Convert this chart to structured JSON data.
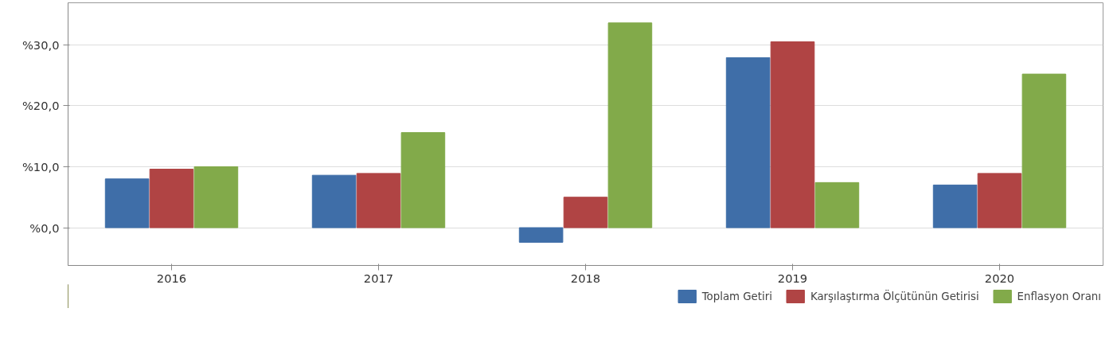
{
  "chart_data": {
    "type": "bar",
    "categories": [
      "2016",
      "2017",
      "2018",
      "2019",
      "2020"
    ],
    "series": [
      {
        "name": "Toplam Getiri",
        "color": "#3f6ea8",
        "values": [
          8.0,
          8.6,
          -2.4,
          27.9,
          7.0
        ]
      },
      {
        "name": "Karşılaştırma Ölçütünün Getirisi",
        "color": "#b04444",
        "values": [
          9.6,
          8.9,
          5.0,
          30.5,
          8.9
        ]
      },
      {
        "name": "Enflasyon Oranı",
        "color": "#82aa4a",
        "values": [
          10.0,
          15.6,
          33.6,
          7.4,
          25.2
        ]
      }
    ],
    "ylim": [
      -6.2,
      36.9
    ],
    "yticks": [
      {
        "value": 0,
        "label": "%0,0"
      },
      {
        "value": 10,
        "label": "%10,0"
      },
      {
        "value": 20,
        "label": "%20,0"
      },
      {
        "value": 30,
        "label": "%30,0"
      }
    ],
    "grid": "y",
    "legend": "bottom right"
  }
}
